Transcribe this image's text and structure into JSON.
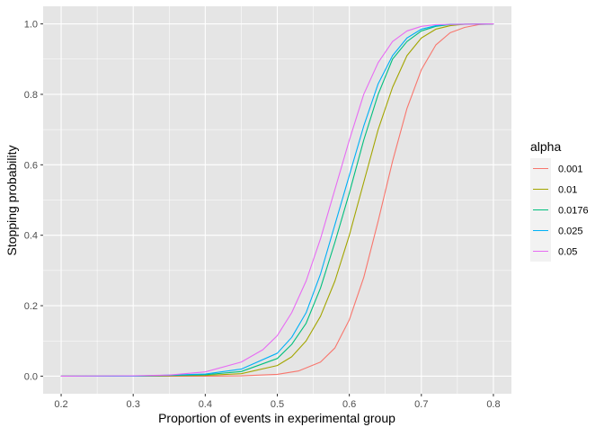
{
  "chart_data": {
    "type": "line",
    "title": "",
    "xlabel": "Proportion of events in experimental group",
    "ylabel": "Stopping probability",
    "xlim": [
      0.175,
      0.825
    ],
    "ylim": [
      -0.05,
      1.05
    ],
    "x_ticks": [
      0.2,
      0.3,
      0.4,
      0.5,
      0.6,
      0.7,
      0.8
    ],
    "x_tick_labels": [
      "0.2",
      "0.3",
      "0.4",
      "0.5",
      "0.6",
      "0.7",
      "0.8"
    ],
    "y_ticks": [
      0.0,
      0.2,
      0.4,
      0.6,
      0.8,
      1.0
    ],
    "y_tick_labels": [
      "0.0",
      "0.2",
      "0.4",
      "0.6",
      "0.8",
      "1.0"
    ],
    "grid": true,
    "panel_background": "#E5E5E5",
    "grid_color": "#FFFFFF",
    "legend": {
      "title": "alpha",
      "position": "right"
    },
    "series": [
      {
        "name": "0.001",
        "color": "#F8766D",
        "x": [
          0.2,
          0.3,
          0.4,
          0.45,
          0.5,
          0.53,
          0.56,
          0.58,
          0.6,
          0.62,
          0.64,
          0.66,
          0.68,
          0.7,
          0.72,
          0.74,
          0.76,
          0.78,
          0.8
        ],
        "y": [
          0.0,
          0.0,
          0.0,
          0.001,
          0.005,
          0.015,
          0.04,
          0.08,
          0.16,
          0.28,
          0.44,
          0.61,
          0.76,
          0.87,
          0.94,
          0.975,
          0.99,
          0.998,
          1.0
        ]
      },
      {
        "name": "0.01",
        "color": "#A3A500",
        "x": [
          0.2,
          0.3,
          0.4,
          0.45,
          0.5,
          0.52,
          0.54,
          0.56,
          0.58,
          0.6,
          0.62,
          0.64,
          0.66,
          0.68,
          0.7,
          0.72,
          0.74,
          0.76,
          0.8
        ],
        "y": [
          0.0,
          0.0,
          0.002,
          0.007,
          0.03,
          0.055,
          0.1,
          0.17,
          0.27,
          0.4,
          0.55,
          0.7,
          0.82,
          0.91,
          0.96,
          0.985,
          0.995,
          0.999,
          1.0
        ]
      },
      {
        "name": "0.0176",
        "color": "#00BF7D",
        "x": [
          0.2,
          0.3,
          0.4,
          0.45,
          0.5,
          0.52,
          0.54,
          0.56,
          0.58,
          0.6,
          0.62,
          0.64,
          0.66,
          0.68,
          0.7,
          0.72,
          0.74,
          0.8
        ],
        "y": [
          0.0,
          0.0,
          0.004,
          0.013,
          0.05,
          0.09,
          0.15,
          0.25,
          0.38,
          0.52,
          0.67,
          0.8,
          0.9,
          0.95,
          0.98,
          0.993,
          0.998,
          1.0
        ]
      },
      {
        "name": "0.025",
        "color": "#00B0F6",
        "x": [
          0.2,
          0.3,
          0.4,
          0.45,
          0.5,
          0.52,
          0.54,
          0.56,
          0.58,
          0.6,
          0.62,
          0.64,
          0.66,
          0.68,
          0.7,
          0.72,
          0.74,
          0.8
        ],
        "y": [
          0.0,
          0.0,
          0.006,
          0.02,
          0.065,
          0.11,
          0.18,
          0.29,
          0.43,
          0.57,
          0.71,
          0.83,
          0.91,
          0.96,
          0.985,
          0.995,
          0.999,
          1.0
        ]
      },
      {
        "name": "0.05",
        "color": "#E76BF3",
        "x": [
          0.2,
          0.3,
          0.35,
          0.4,
          0.45,
          0.48,
          0.5,
          0.52,
          0.54,
          0.56,
          0.58,
          0.6,
          0.62,
          0.64,
          0.66,
          0.68,
          0.7,
          0.72,
          0.8
        ],
        "y": [
          0.0,
          0.001,
          0.003,
          0.012,
          0.04,
          0.075,
          0.115,
          0.18,
          0.27,
          0.39,
          0.53,
          0.67,
          0.8,
          0.89,
          0.95,
          0.98,
          0.993,
          0.998,
          1.0
        ]
      }
    ]
  }
}
